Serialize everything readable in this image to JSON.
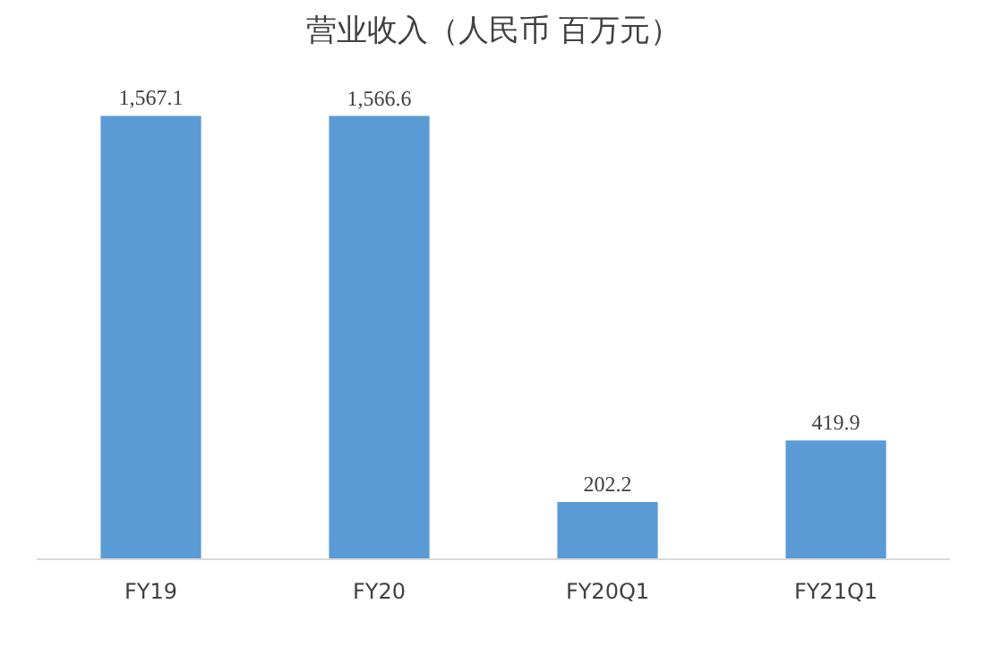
{
  "chart_data": {
    "type": "bar",
    "title": "营业收入（人民币 百万元）",
    "categories": [
      "FY19",
      "FY20",
      "FY20Q1",
      "FY21Q1"
    ],
    "values": [
      1567.1,
      1566.6,
      202.2,
      419.9
    ],
    "value_labels": [
      "1,567.1",
      "1,566.6",
      "202.2",
      "419.9"
    ],
    "color": "#5b9bd5",
    "grid": false
  }
}
